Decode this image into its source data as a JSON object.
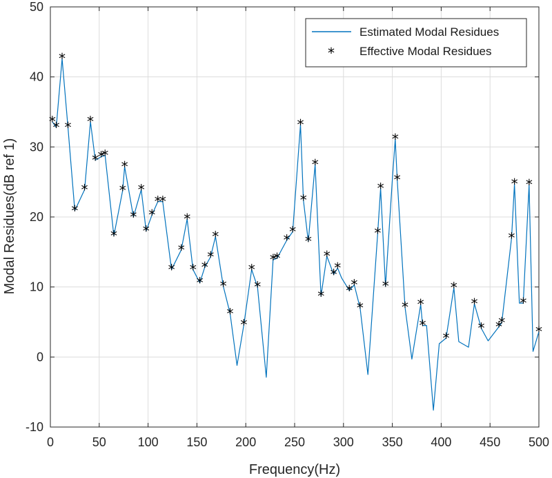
{
  "chart_data": {
    "type": "line",
    "xlabel": "Frequency(Hz)",
    "ylabel": "Modal Residues(dB ref 1)",
    "xlim": [
      0,
      500
    ],
    "ylim": [
      -10,
      50
    ],
    "xticks": [
      0,
      50,
      100,
      150,
      200,
      250,
      300,
      350,
      400,
      450,
      500
    ],
    "yticks": [
      -10,
      0,
      10,
      20,
      30,
      40,
      50
    ],
    "grid": true,
    "legend_position": "top-right",
    "series": [
      {
        "name": "Estimated Modal Residues",
        "style": "line",
        "color": "#0072BD",
        "x": [
          2,
          6,
          12,
          18,
          25,
          35,
          41,
          46,
          52,
          56,
          65,
          74,
          76,
          85,
          93,
          98,
          104,
          110,
          115,
          124,
          134,
          140,
          146,
          153,
          158,
          164,
          169,
          177,
          184,
          191,
          198,
          206,
          212,
          221,
          228,
          232,
          242,
          248,
          256,
          259,
          264,
          271,
          277,
          283,
          290,
          294,
          298,
          306,
          311,
          317,
          325,
          335,
          338,
          343,
          350,
          353,
          355,
          363,
          370,
          379,
          381,
          385,
          392,
          398,
          405,
          413,
          418,
          428,
          434,
          441,
          448,
          459,
          462,
          472,
          475,
          480,
          484,
          490,
          494,
          500
        ],
        "values": [
          33.6,
          32.8,
          42.6,
          32.8,
          20.9,
          23.9,
          33.6,
          28.1,
          28.6,
          28.8,
          17.3,
          23.8,
          27.2,
          20.0,
          23.9,
          18.0,
          20.3,
          22.2,
          22.2,
          12.5,
          15.3,
          19.7,
          12.5,
          10.6,
          12.8,
          14.3,
          17.2,
          10.1,
          6.2,
          -1.2,
          4.6,
          12.5,
          10.0,
          -2.9,
          13.9,
          14.1,
          16.7,
          17.9,
          33.2,
          22.4,
          16.5,
          27.5,
          8.7,
          14.4,
          11.8,
          12.7,
          11.3,
          9.5,
          10.3,
          7.0,
          -2.5,
          17.7,
          24.1,
          10.1,
          25.3,
          31.1,
          25.3,
          7.1,
          -0.3,
          7.5,
          4.5,
          4.5,
          -7.6,
          1.9,
          2.7,
          9.9,
          2.2,
          1.4,
          7.6,
          4.1,
          2.3,
          4.3,
          4.9,
          17.0,
          24.7,
          7.7,
          7.7,
          24.6,
          0.8,
          3.6
        ]
      },
      {
        "name": "Effective Modal Residues",
        "style": "markers",
        "marker": "*",
        "color": "#000000",
        "x": [
          2,
          6,
          12,
          18,
          25,
          35,
          41,
          46,
          52,
          56,
          65,
          74,
          76,
          85,
          93,
          98,
          104,
          110,
          115,
          124,
          134,
          140,
          146,
          153,
          158,
          164,
          169,
          177,
          184,
          198,
          206,
          212,
          228,
          232,
          242,
          248,
          256,
          259,
          264,
          271,
          277,
          283,
          290,
          294,
          306,
          311,
          317,
          335,
          338,
          343,
          353,
          355,
          363,
          379,
          381,
          405,
          413,
          434,
          441,
          459,
          462,
          472,
          475,
          484,
          490,
          500
        ],
        "values": [
          33.6,
          32.8,
          42.6,
          32.8,
          20.9,
          23.9,
          33.6,
          28.1,
          28.6,
          28.8,
          17.3,
          23.8,
          27.2,
          20.0,
          23.9,
          18.0,
          20.3,
          22.2,
          22.2,
          12.5,
          15.3,
          19.7,
          12.5,
          10.6,
          12.8,
          14.3,
          17.2,
          10.1,
          6.2,
          4.6,
          12.5,
          10.0,
          13.9,
          14.1,
          16.7,
          17.9,
          33.2,
          22.4,
          16.5,
          27.5,
          8.7,
          14.4,
          11.8,
          12.7,
          9.5,
          10.3,
          7.0,
          17.7,
          24.1,
          10.1,
          31.1,
          25.3,
          7.1,
          7.5,
          4.5,
          2.7,
          9.9,
          7.6,
          4.1,
          4.3,
          4.9,
          17.0,
          24.7,
          7.7,
          24.6,
          3.6
        ]
      }
    ]
  }
}
